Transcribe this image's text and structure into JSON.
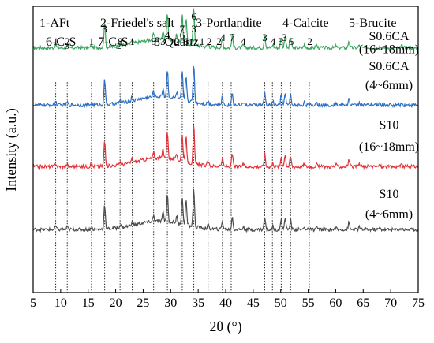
{
  "chart_data": {
    "type": "line",
    "xlabel": "2θ (°)",
    "ylabel": "Intensity (a.u.)",
    "xlim": [
      5,
      75
    ],
    "xticks": [
      "5",
      "10",
      "15",
      "20",
      "25",
      "30",
      "35",
      "40",
      "45",
      "50",
      "55",
      "60",
      "65",
      "70",
      "75"
    ],
    "grid": false,
    "phase_legend": [
      {
        "text": "1-AFt"
      },
      {
        "text": "2-Friedel's salt"
      },
      {
        "text": "3-Portlandite"
      },
      {
        "text": "4-Calcite"
      },
      {
        "text": "5-Brucite"
      },
      {
        "text": "6-C",
        "sub": "3",
        "tail": "S"
      },
      {
        "text": "7-C",
        "sub": "2",
        "tail": "S"
      },
      {
        "text": "8-Quartz"
      }
    ],
    "reference_lines_2theta": [
      9.1,
      11.2,
      15.6,
      18.0,
      20.8,
      23.0,
      26.9,
      29.4,
      32.1,
      34.2,
      36.8,
      39.4,
      41.0,
      47.1,
      48.5,
      50.1,
      51.8,
      55.2
    ],
    "peak_labels": [
      {
        "text": "1",
        "x": 9.1,
        "level": 1
      },
      {
        "text": "2",
        "x": 11.2,
        "level": 1
      },
      {
        "text": "1",
        "x": 15.6,
        "level": 1
      },
      {
        "text": "3",
        "x": 18.0,
        "level": 2
      },
      {
        "text": "8",
        "x": 20.8,
        "level": 1
      },
      {
        "text": "1",
        "x": 23.0,
        "level": 1
      },
      {
        "text": "8",
        "x": 26.9,
        "level": 1
      },
      {
        "text": "3",
        "x": 28.6,
        "level": 1
      },
      {
        "text": "4",
        "x": 29.4,
        "level": 1.5
      },
      {
        "text": "2",
        "x": 31.1,
        "level": 1
      },
      {
        "text": "7",
        "x": 32.1,
        "level": 2
      },
      {
        "text": "6",
        "x": 32.1,
        "level": 1.5
      },
      {
        "text": "6",
        "x": 32.8,
        "level": 1
      },
      {
        "text": "6",
        "x": 34.2,
        "level": 3
      },
      {
        "text": "3",
        "x": 34.2,
        "level": 2
      },
      {
        "text": "1",
        "x": 35.7,
        "level": 1
      },
      {
        "text": "2",
        "x": 37.0,
        "level": 1
      },
      {
        "text": "2",
        "x": 38.8,
        "level": 1
      },
      {
        "text": "4",
        "x": 39.5,
        "level": 1.3
      },
      {
        "text": "7",
        "x": 41.2,
        "level": 1.3
      },
      {
        "text": "4",
        "x": 43.2,
        "level": 1
      },
      {
        "text": "3",
        "x": 47.1,
        "level": 1.3
      },
      {
        "text": "4",
        "x": 48.6,
        "level": 1
      },
      {
        "text": "5",
        "x": 50.0,
        "level": 1
      },
      {
        "text": "3",
        "x": 50.7,
        "level": 1.3
      },
      {
        "text": "6",
        "x": 51.9,
        "level": 1
      },
      {
        "text": "2",
        "x": 55.3,
        "level": 1
      }
    ],
    "series": [
      {
        "name": "S0.6CA",
        "name2": "(16~18mm)",
        "color": "#3aa55e",
        "baseline": 0.855,
        "label_y": [
          0.855,
          0.895
        ]
      },
      {
        "name": "S0.6CA",
        "name2": "(4~6mm)",
        "color": "#2a6fc4",
        "baseline": 0.655,
        "label_y": [
          0.73,
          0.79
        ]
      },
      {
        "name": "S10",
        "name2": "(16~18mm)",
        "color": "#e0343a",
        "baseline": 0.44,
        "label_y": [
          0.515,
          0.585
        ]
      },
      {
        "name": "S10",
        "name2": "(4~6mm)",
        "color": "#4d4d4d",
        "baseline": 0.22,
        "label_y": [
          0.28,
          0.345
        ]
      }
    ],
    "peaks": [
      {
        "x": 9.1,
        "h": 0.08
      },
      {
        "x": 11.2,
        "h": 0.06
      },
      {
        "x": 15.6,
        "h": 0.05
      },
      {
        "x": 18.0,
        "h": 0.55
      },
      {
        "x": 20.8,
        "h": 0.07
      },
      {
        "x": 23.0,
        "h": 0.1
      },
      {
        "x": 26.9,
        "h": 0.12
      },
      {
        "x": 28.6,
        "h": 0.18
      },
      {
        "x": 29.4,
        "h": 0.6
      },
      {
        "x": 31.1,
        "h": 0.14
      },
      {
        "x": 32.1,
        "h": 0.6
      },
      {
        "x": 32.8,
        "h": 0.55
      },
      {
        "x": 34.2,
        "h": 0.85
      },
      {
        "x": 36.8,
        "h": 0.08
      },
      {
        "x": 39.4,
        "h": 0.18
      },
      {
        "x": 41.2,
        "h": 0.28
      },
      {
        "x": 43.2,
        "h": 0.06
      },
      {
        "x": 47.1,
        "h": 0.28
      },
      {
        "x": 48.6,
        "h": 0.08
      },
      {
        "x": 50.1,
        "h": 0.22
      },
      {
        "x": 50.8,
        "h": 0.28
      },
      {
        "x": 51.8,
        "h": 0.22
      },
      {
        "x": 54.3,
        "h": 0.07
      },
      {
        "x": 56.5,
        "h": 0.07
      },
      {
        "x": 60.0,
        "h": 0.05
      },
      {
        "x": 62.4,
        "h": 0.15
      },
      {
        "x": 64.3,
        "h": 0.06
      },
      {
        "x": 68.0,
        "h": 0.04
      },
      {
        "x": 72.0,
        "h": 0.04
      }
    ]
  }
}
